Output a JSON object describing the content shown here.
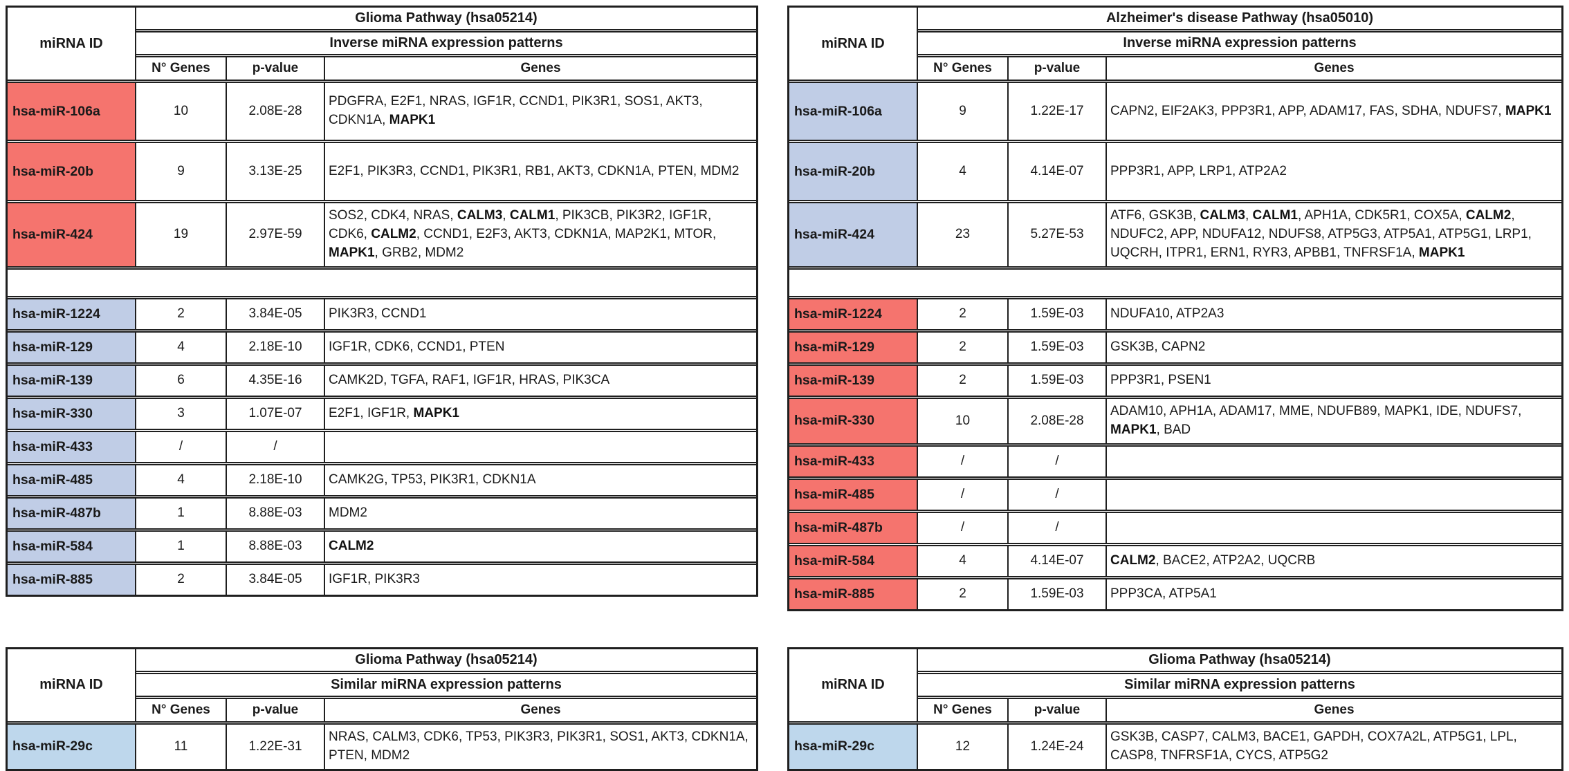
{
  "colors": {
    "red": "#f5746e",
    "blue": "#c0cde6",
    "lightblue": "#bed7ec",
    "border": "#1f1f1f",
    "background": "#ffffff"
  },
  "labels": {
    "mirna_id": "miRNA ID",
    "n_genes": "N° Genes",
    "p_value": "p-value",
    "genes": "Genes"
  },
  "tables": [
    {
      "name": "glioma-inverse",
      "pathway": "Glioma Pathway (hsa05214)",
      "pattern": "Inverse miRNA expression patterns",
      "sections": [
        {
          "row_color": "red",
          "rows": [
            {
              "mirna": "hsa-miR-106a",
              "n_genes": "10",
              "p_value": "2.08E-28",
              "genes": "PDGFRA, E2F1, NRAS, IGF1R, CCND1, PIK3R1, SOS1, AKT3, CDKN1A, **MAPK1**"
            },
            {
              "mirna": "hsa-miR-20b",
              "n_genes": "9",
              "p_value": "3.13E-25",
              "genes": "E2F1, PIK3R3, CCND1, PIK3R1, RB1, AKT3, CDKN1A, PTEN, MDM2"
            },
            {
              "mirna": "hsa-miR-424",
              "n_genes": "19",
              "p_value": "2.97E-59",
              "genes": "SOS2, CDK4, NRAS, **CALM3**, **CALM1**, PIK3CB, PIK3R2, IGF1R, CDK6, **CALM2**, CCND1, E2F3, AKT3, CDKN1A, MAP2K1, MTOR, **MAPK1**, GRB2, MDM2"
            }
          ]
        },
        {
          "row_color": "blue",
          "rows": [
            {
              "mirna": "hsa-miR-1224",
              "n_genes": "2",
              "p_value": "3.84E-05",
              "genes": "PIK3R3, CCND1"
            },
            {
              "mirna": "hsa-miR-129",
              "n_genes": "4",
              "p_value": "2.18E-10",
              "genes": "IGF1R, CDK6, CCND1, PTEN"
            },
            {
              "mirna": "hsa-miR-139",
              "n_genes": "6",
              "p_value": "4.35E-16",
              "genes": "CAMK2D, TGFA, RAF1, IGF1R, HRAS, PIK3CA"
            },
            {
              "mirna": "hsa-miR-330",
              "n_genes": "3",
              "p_value": "1.07E-07",
              "genes": "E2F1, IGF1R, **MAPK1**"
            },
            {
              "mirna": "hsa-miR-433",
              "n_genes": "/",
              "p_value": "/",
              "genes": ""
            },
            {
              "mirna": "hsa-miR-485",
              "n_genes": "4",
              "p_value": "2.18E-10",
              "genes": "CAMK2G, TP53, PIK3R1, CDKN1A"
            },
            {
              "mirna": "hsa-miR-487b",
              "n_genes": "1",
              "p_value": "8.88E-03",
              "genes": "MDM2"
            },
            {
              "mirna": "hsa-miR-584",
              "n_genes": "1",
              "p_value": "8.88E-03",
              "genes": "**CALM2**"
            },
            {
              "mirna": "hsa-miR-885",
              "n_genes": "2",
              "p_value": "3.84E-05",
              "genes": "IGF1R, PIK3R3"
            }
          ]
        }
      ]
    },
    {
      "name": "alzheimer-inverse",
      "pathway": "Alzheimer's disease Pathway (hsa05010)",
      "pattern": "Inverse miRNA expression patterns",
      "sections": [
        {
          "row_color": "blue",
          "rows": [
            {
              "mirna": "hsa-miR-106a",
              "n_genes": "9",
              "p_value": "1.22E-17",
              "genes": "CAPN2, EIF2AK3, PPP3R1, APP, ADAM17, FAS, SDHA, NDUFS7, **MAPK1**"
            },
            {
              "mirna": "hsa-miR-20b",
              "n_genes": "4",
              "p_value": "4.14E-07",
              "genes": "PPP3R1, APP, LRP1, ATP2A2"
            },
            {
              "mirna": "hsa-miR-424",
              "n_genes": "23",
              "p_value": "5.27E-53",
              "genes": "ATF6, GSK3B, **CALM3**, **CALM1**, APH1A, CDK5R1, COX5A, **CALM2**, NDUFC2, APP, NDUFA12, NDUFS8, ATP5G3, ATP5A1, ATP5G1, LRP1, UQCRH, ITPR1, ERN1, RYR3, APBB1, TNFRSF1A, **MAPK1**"
            }
          ]
        },
        {
          "row_color": "red",
          "rows": [
            {
              "mirna": "hsa-miR-1224",
              "n_genes": "2",
              "p_value": "1.59E-03",
              "genes": "NDUFA10, ATP2A3"
            },
            {
              "mirna": "hsa-miR-129",
              "n_genes": "2",
              "p_value": "1.59E-03",
              "genes": "GSK3B, CAPN2"
            },
            {
              "mirna": "hsa-miR-139",
              "n_genes": "2",
              "p_value": "1.59E-03",
              "genes": "PPP3R1, PSEN1"
            },
            {
              "mirna": "hsa-miR-330",
              "n_genes": "10",
              "p_value": "2.08E-28",
              "genes": "ADAM10, APH1A, ADAM17, MME, NDUFB89, MAPK1, IDE, NDUFS7, **MAPK1**, BAD"
            },
            {
              "mirna": "hsa-miR-433",
              "n_genes": "/",
              "p_value": "/",
              "genes": ""
            },
            {
              "mirna": "hsa-miR-485",
              "n_genes": "/",
              "p_value": "/",
              "genes": ""
            },
            {
              "mirna": "hsa-miR-487b",
              "n_genes": "/",
              "p_value": "/",
              "genes": ""
            },
            {
              "mirna": "hsa-miR-584",
              "n_genes": "4",
              "p_value": "4.14E-07",
              "genes": "**CALM2**, BACE2, ATP2A2, UQCRB"
            },
            {
              "mirna": "hsa-miR-885",
              "n_genes": "2",
              "p_value": "1.59E-03",
              "genes": "PPP3CA, ATP5A1"
            }
          ]
        }
      ]
    },
    {
      "name": "glioma-similar-left",
      "pathway": "Glioma Pathway (hsa05214)",
      "pattern": "Similar miRNA expression patterns",
      "sections": [
        {
          "row_color": "lightblue",
          "rows": [
            {
              "mirna": "hsa-miR-29c",
              "n_genes": "11",
              "p_value": "1.22E-31",
              "genes": "NRAS, CALM3, CDK6, TP53, PIK3R3, PIK3R1, SOS1, AKT3, CDKN1A, PTEN, MDM2"
            }
          ]
        }
      ]
    },
    {
      "name": "glioma-similar-right",
      "pathway": "Glioma Pathway (hsa05214)",
      "pattern": "Similar miRNA expression patterns",
      "sections": [
        {
          "row_color": "lightblue",
          "rows": [
            {
              "mirna": "hsa-miR-29c",
              "n_genes": "12",
              "p_value": "1.24E-24",
              "genes": "GSK3B, CASP7, CALM3, BACE1, GAPDH, COX7A2L, ATP5G1, LPL, CASP8, TNFRSF1A, CYCS, ATP5G2"
            }
          ]
        }
      ]
    }
  ]
}
